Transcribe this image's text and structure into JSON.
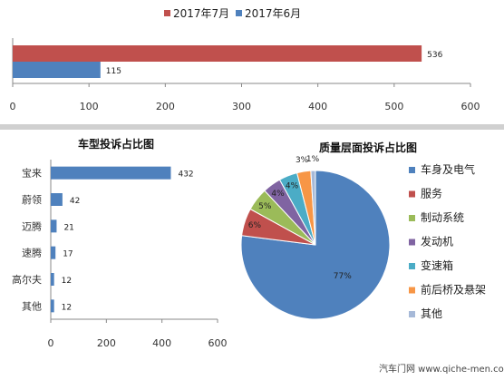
{
  "chart_data": [
    {
      "type": "bar",
      "orientation": "horizontal",
      "title": "",
      "categories": [
        ""
      ],
      "series": [
        {
          "name": "2017年7月",
          "color": "#c0504d",
          "values": [
            536
          ]
        },
        {
          "name": "2017年6月",
          "color": "#4f81bd",
          "values": [
            115
          ]
        }
      ],
      "xlim": [
        0,
        600
      ],
      "xticks": [
        "0",
        "100",
        "200",
        "300",
        "400",
        "500",
        "600"
      ],
      "legend": "top",
      "grid": false
    },
    {
      "type": "bar",
      "orientation": "horizontal",
      "title": "车型投诉占比图",
      "categories": [
        "宝来",
        "蔚领",
        "迈腾",
        "速腾",
        "高尔夫",
        "其他"
      ],
      "values": [
        432,
        42,
        21,
        17,
        12,
        12
      ],
      "color": "#4f81bd",
      "xlim": [
        0,
        600
      ],
      "xticks": [
        "0",
        "200",
        "400",
        "600"
      ],
      "grid": false
    },
    {
      "type": "pie",
      "title": "质量层面投诉占比图",
      "slices": [
        {
          "label": "车身及电气",
          "value": 77,
          "text": "77%",
          "color": "#4f81bd"
        },
        {
          "label": "服务",
          "value": 6,
          "text": "6%",
          "color": "#c0504d"
        },
        {
          "label": "制动系统",
          "value": 5,
          "text": "5%",
          "color": "#9bbb59"
        },
        {
          "label": "发动机",
          "value": 4,
          "text": "4%",
          "color": "#8064a2"
        },
        {
          "label": "变速箱",
          "value": 4,
          "text": "4%",
          "color": "#4bacc6"
        },
        {
          "label": "前后桥及悬架",
          "value": 3,
          "text": "3%",
          "color": "#f79646"
        },
        {
          "label": "其他",
          "value": 1,
          "text": "1%",
          "color": "#a6b9d8"
        }
      ],
      "legend": "right"
    }
  ],
  "watermark": {
    "text": "汽车门网 www.qiche-men.com"
  }
}
